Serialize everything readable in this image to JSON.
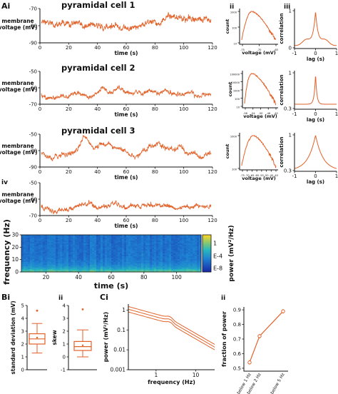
{
  "panel_labels": {
    "a": "Ai",
    "a_ii": "ii",
    "a_iii": "iii",
    "a_iv": "iv",
    "b": "Bi",
    "b_ii": "ii",
    "c": "Ci",
    "c_ii": "ii"
  },
  "colors": {
    "trace": "#e2622a",
    "axis": "#111111"
  },
  "chart_data": [
    {
      "id": "trace1",
      "type": "line",
      "title": "pyramidal cell 1",
      "xlabel": "time (s)",
      "ylabel": "membrane voltage (mV)",
      "xlim": [
        0,
        120
      ],
      "ylim": [
        -90,
        -70
      ],
      "xticks": [
        "0",
        "20",
        "40",
        "60",
        "80",
        "100",
        "120"
      ],
      "yticks": [
        "-90",
        "-80",
        "-70"
      ]
    },
    {
      "id": "trace2",
      "type": "line",
      "title": "pyramidal cell 2",
      "xlabel": "time (s)",
      "ylabel": "membrane voltage (mV)",
      "xlim": [
        0,
        120
      ],
      "ylim": [
        -70,
        -50
      ],
      "xticks": [
        "0",
        "20",
        "40",
        "60",
        "80",
        "100",
        "120"
      ],
      "yticks": [
        "-70",
        "-60",
        "-50"
      ]
    },
    {
      "id": "trace3",
      "type": "line",
      "title": "pyramidal cell 3",
      "xlabel": "time (s)",
      "ylabel": "membrane voltage (mV)",
      "xlim": [
        0,
        120
      ],
      "ylim": [
        -90,
        -50
      ],
      "xticks": [
        "0",
        "20",
        "40",
        "60",
        "80",
        "100",
        "120"
      ],
      "yticks": [
        "-90",
        "-70",
        "-50"
      ]
    },
    {
      "id": "hist1",
      "type": "line",
      "xlabel": "voltage (mV)",
      "ylabel": "count",
      "xticks": [
        "-75",
        "-70",
        "-65"
      ],
      "yticks": [
        "1000",
        "100",
        "10"
      ]
    },
    {
      "id": "hist2",
      "type": "line",
      "xlabel": "voltage (mV)",
      "ylabel": "count",
      "xticks": [
        "-58",
        "-54",
        "-50",
        "-46",
        "-42"
      ],
      "yticks": [
        "100000",
        "10000",
        "1000",
        "100",
        "10"
      ]
    },
    {
      "id": "hist3",
      "type": "line",
      "xlabel": "voltage (mV)",
      "ylabel": "count",
      "xticks": [
        "-75",
        "-70",
        "-65",
        "-60",
        "-55",
        "-50",
        "-45",
        "-40"
      ],
      "yticks": [
        "1000",
        "100"
      ]
    },
    {
      "id": "corr1",
      "type": "line",
      "xlabel": "lag (s)",
      "ylabel": "correlation",
      "xlim": [
        -1,
        1
      ],
      "ylim": [
        0,
        1
      ],
      "xticks": [
        "-1",
        "0",
        "1"
      ],
      "yticks": [
        "0",
        "1"
      ]
    },
    {
      "id": "corr2",
      "type": "line",
      "xlabel": "lag (s)",
      "ylabel": "correlation",
      "xlim": [
        -1,
        1
      ],
      "ylim": [
        0.3,
        1
      ],
      "xticks": [
        "-1",
        "0",
        "1"
      ],
      "yticks": [
        "0.3",
        "1"
      ]
    },
    {
      "id": "corr3",
      "type": "line",
      "xlabel": "lag (s)",
      "ylabel": "correlation",
      "xlim": [
        -1,
        1
      ],
      "ylim": [
        0.3,
        1
      ],
      "xticks": [
        "-1",
        "0",
        "1"
      ],
      "yticks": [
        "0.3",
        "1"
      ]
    },
    {
      "id": "trace4",
      "type": "line",
      "xlabel": "time (s)",
      "ylabel": "membrane voltage (mV)",
      "xlim": [
        0,
        120
      ],
      "ylim": [
        -70,
        -50
      ],
      "xticks": [
        "0",
        "20",
        "40",
        "60",
        "80",
        "100",
        "120"
      ],
      "yticks": [
        "-70",
        "-60",
        "-50"
      ]
    },
    {
      "id": "spectrogram",
      "type": "heatmap",
      "xlabel": "time (s)",
      "ylabel": "frequency (Hz)",
      "xlim": [
        5,
        115
      ],
      "ylim": [
        0,
        30
      ],
      "xticks": [
        "20",
        "40",
        "60",
        "80",
        "100"
      ],
      "yticks": [
        "0",
        "10",
        "20",
        "30"
      ],
      "colorbar_label": "power (mV²/Hz)",
      "colorbar_ticks": [
        "1",
        "E-4",
        "E-8"
      ]
    },
    {
      "id": "box_sd",
      "type": "box",
      "ylabel": "standard deviation (mV)",
      "ylim": [
        0,
        5
      ],
      "yticks": [
        "0",
        "1",
        "2",
        "3",
        "4",
        "5"
      ],
      "q1": 2.0,
      "median": 2.4,
      "q3": 2.8,
      "mean": 2.5,
      "whisker_low": 1.3,
      "whisker_high": 3.6,
      "outlier": 4.6
    },
    {
      "id": "box_skew",
      "type": "box",
      "ylabel": "skew",
      "ylim": [
        -1,
        4
      ],
      "yticks": [
        "-1",
        "0",
        "1",
        "2",
        "3",
        "4"
      ],
      "q1": 0.5,
      "median": 0.8,
      "q3": 1.2,
      "mean": 0.9,
      "whisker_low": 0.0,
      "whisker_high": 2.1,
      "outlier": 3.7
    },
    {
      "id": "psd",
      "type": "line",
      "xlabel": "frequency (Hz)",
      "ylabel": "power (mV²/Hz)",
      "xscale": "log",
      "yscale": "log",
      "xlim": [
        0.2,
        30
      ],
      "ylim": [
        0.001,
        2
      ],
      "xticks": [
        "1",
        "10"
      ],
      "yticks": [
        "0.001",
        "0.01",
        "0.1",
        "1"
      ]
    },
    {
      "id": "fraction",
      "type": "line",
      "ylabel": "fraction of power",
      "categories": [
        "below 1 Hz",
        "below 2 Hz",
        "below 5 Hz"
      ],
      "values": [
        0.54,
        0.72,
        0.89
      ],
      "ylim": [
        0.5,
        0.9
      ],
      "yticks": [
        "0.5",
        "0.6",
        "0.7",
        "0.8",
        "0.9"
      ]
    }
  ]
}
